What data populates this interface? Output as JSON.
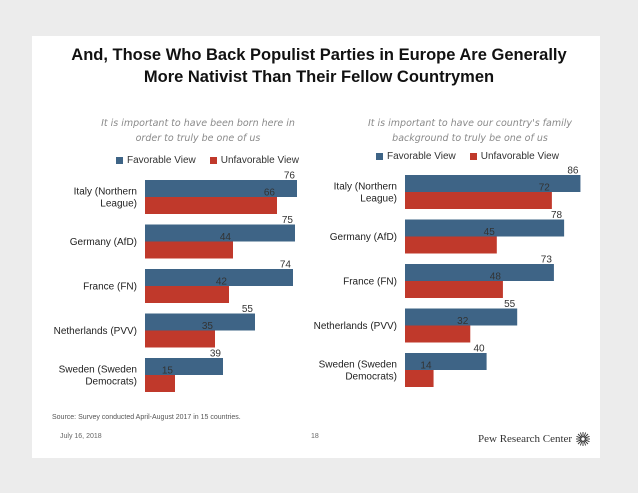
{
  "slide": {
    "title_line1": "And, Those Who Back Populist Parties in Europe Are Generally",
    "title_line2": "More Nativist Than Their Fellow Countrymen",
    "source": "Source: Survey conducted April-August 2017 in 15 countries.",
    "date": "July 16, 2018",
    "page_number": "18",
    "brand": "Pew Research Center"
  },
  "colors": {
    "favorable": "#3e6486",
    "unfavorable": "#c0392b"
  },
  "chart_data": [
    {
      "type": "bar",
      "orientation": "horizontal",
      "subtitle_line1": "It is important to have been born here in",
      "subtitle_line2": "order to truly be one of us",
      "categories": [
        [
          "Italy (Northern",
          "League)"
        ],
        [
          "Germany (AfD)"
        ],
        [
          "France (FN)"
        ],
        [
          "Netherlands (PVV)"
        ],
        [
          "Sweden (Sweden",
          "Democrats)"
        ]
      ],
      "series": [
        {
          "name": "Favorable View",
          "values": [
            76,
            75,
            74,
            55,
            39
          ]
        },
        {
          "name": "Unfavorable View",
          "values": [
            66,
            44,
            42,
            35,
            15
          ]
        }
      ],
      "xlim": [
        0,
        100
      ]
    },
    {
      "type": "bar",
      "orientation": "horizontal",
      "subtitle_line1": "It is important to have our country's family",
      "subtitle_line2": "background to truly be one of us",
      "categories": [
        [
          "Italy (Northern",
          "League)"
        ],
        [
          "Germany (AfD)"
        ],
        [
          "France (FN)"
        ],
        [
          "Netherlands (PVV)"
        ],
        [
          "Sweden (Sweden",
          "Democrats)"
        ]
      ],
      "series": [
        {
          "name": "Favorable View",
          "values": [
            86,
            78,
            73,
            55,
            40
          ]
        },
        {
          "name": "Unfavorable View",
          "values": [
            72,
            45,
            48,
            32,
            14
          ]
        }
      ],
      "xlim": [
        0,
        100
      ]
    }
  ]
}
